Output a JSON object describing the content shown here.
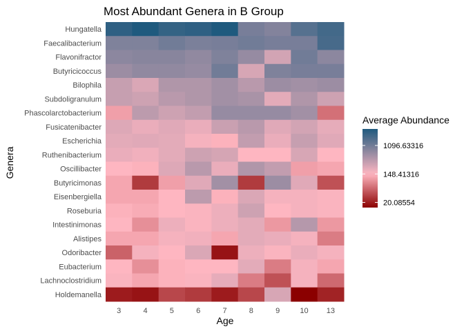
{
  "chart_data": {
    "type": "heatmap",
    "title": "Most Abundant Genera in B Group",
    "xlabel": "Age",
    "ylabel": "Genera",
    "x": [
      "3",
      "4",
      "5",
      "6",
      "7",
      "8",
      "9",
      "10",
      "13"
    ],
    "y": [
      "Hungatella",
      "Faecalibacterium",
      "Flavonifractor",
      "Butyricicoccus",
      "Bilophila",
      "Subdoligranulum",
      "Phascolarctobacterium",
      "Fusicatenibacter",
      "Escherichia",
      "Ruthenibacterium",
      "Oscillibacter",
      "Butyricimonas",
      "Eisenbergiella",
      "Roseburia",
      "Intestinimonas",
      "Alistipes",
      "Odoribacter",
      "Eubacterium",
      "Lachnoclostridium",
      "Holdemanella"
    ],
    "values": [
      [
        2800,
        3500,
        2600,
        2800,
        3500,
        1000,
        850,
        1600,
        2100
      ],
      [
        900,
        900,
        1100,
        950,
        1000,
        1100,
        1000,
        1000,
        2000
      ],
      [
        750,
        800,
        800,
        700,
        900,
        650,
        280,
        1100,
        750
      ],
      [
        600,
        700,
        700,
        650,
        1100,
        260,
        900,
        1000,
        1000
      ],
      [
        330,
        250,
        450,
        450,
        550,
        400,
        600,
        550,
        600
      ],
      [
        330,
        300,
        400,
        450,
        550,
        500,
        220,
        450,
        300
      ],
      [
        110,
        380,
        300,
        350,
        650,
        650,
        650,
        550,
        60
      ],
      [
        240,
        200,
        230,
        200,
        320,
        400,
        230,
        280,
        210
      ],
      [
        220,
        230,
        220,
        170,
        140,
        350,
        200,
        330,
        230
      ],
      [
        200,
        180,
        220,
        300,
        270,
        150,
        150,
        260,
        150
      ],
      [
        150,
        140,
        240,
        400,
        200,
        450,
        350,
        110,
        120
      ],
      [
        120,
        30,
        110,
        230,
        550,
        30,
        600,
        230,
        40
      ],
      [
        120,
        120,
        150,
        380,
        140,
        250,
        170,
        170,
        160
      ],
      [
        140,
        130,
        150,
        160,
        190,
        300,
        150,
        170,
        160
      ],
      [
        150,
        90,
        190,
        160,
        190,
        220,
        100,
        420,
        100
      ],
      [
        120,
        120,
        170,
        180,
        120,
        220,
        200,
        170,
        70
      ],
      [
        50,
        170,
        150,
        250,
        18,
        190,
        160,
        200,
        170
      ],
      [
        150,
        90,
        140,
        150,
        150,
        220,
        70,
        170,
        120
      ],
      [
        160,
        120,
        140,
        160,
        210,
        70,
        40,
        170,
        55
      ],
      [
        20,
        18,
        35,
        30,
        20,
        35,
        260,
        14,
        22
      ]
    ],
    "scale": "log",
    "legend": {
      "title": "Average Abundance",
      "breaks": [
        "1096.63316",
        "148.41316",
        "20.08554"
      ],
      "placement": "right"
    },
    "colors": {
      "low": "#8b0000",
      "mid": "#ffb6c1",
      "high": "#1f5a7e"
    },
    "grid": false
  }
}
